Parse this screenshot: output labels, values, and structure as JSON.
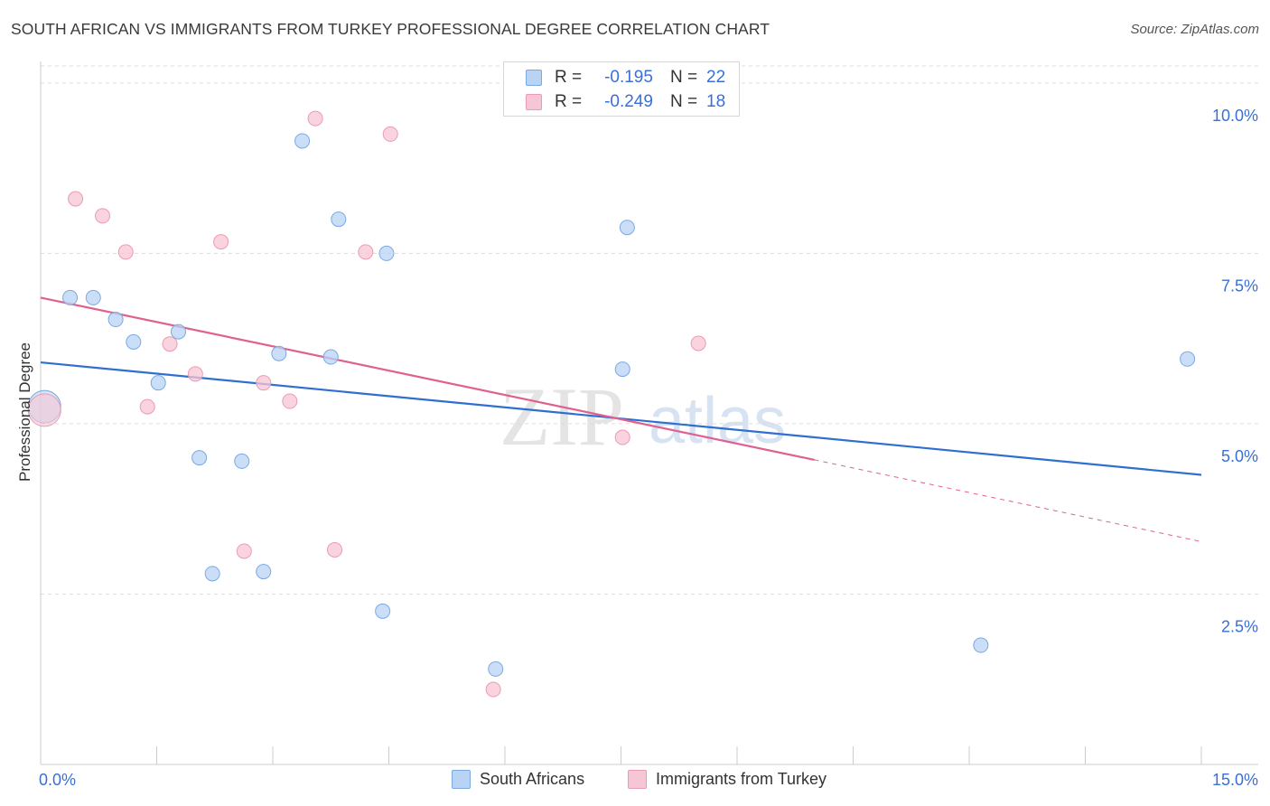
{
  "page": {
    "title": "SOUTH AFRICAN VS IMMIGRANTS FROM TURKEY PROFESSIONAL DEGREE CORRELATION CHART",
    "source": "Source: ZipAtlas.com"
  },
  "colors": {
    "blue_fill": "#b9d3f4",
    "blue_stroke": "#7aa9e2",
    "blue_line": "#2f6fd0",
    "pink_fill": "#f7c6d4",
    "pink_stroke": "#ec9ab3",
    "pink_line": "#e0608f",
    "grid": "#dcdcdc",
    "tick_label": "#3a6fd8",
    "watermark": "#e6e6e6"
  },
  "legend": {
    "rows": [
      {
        "r_label": "R =",
        "r_value": "-0.195",
        "n_label": "N =",
        "n_value": "22"
      },
      {
        "r_label": "R =",
        "r_value": "-0.249",
        "n_label": "N =",
        "n_value": "18"
      }
    ]
  },
  "watermark": {
    "zip": "ZIP",
    "atlas": "atlas"
  },
  "chart_data": {
    "type": "scatter",
    "title": "SOUTH AFRICAN VS IMMIGRANTS FROM TURKEY PROFESSIONAL DEGREE CORRELATION CHART",
    "xlabel": "",
    "ylabel": "Professional Degree",
    "xlim": [
      0,
      15
    ],
    "ylim": [
      0,
      10.25
    ],
    "x_tick_labels": [
      "0.0%",
      "15.0%"
    ],
    "y_ticks": [
      2.5,
      5.0,
      7.5,
      10.0
    ],
    "y_tick_labels": [
      "2.5%",
      "5.0%",
      "7.5%",
      "10.0%"
    ],
    "grid": true,
    "legend_position": "top-center",
    "series": [
      {
        "name": "South Africans",
        "color": "#7aa9e2",
        "points": [
          [
            0.05,
            5.25
          ],
          [
            0.38,
            6.85
          ],
          [
            0.68,
            6.85
          ],
          [
            0.97,
            6.53
          ],
          [
            1.2,
            6.2
          ],
          [
            1.52,
            5.6
          ],
          [
            1.78,
            6.35
          ],
          [
            2.05,
            4.5
          ],
          [
            2.22,
            2.8
          ],
          [
            2.6,
            4.45
          ],
          [
            2.88,
            2.83
          ],
          [
            3.08,
            6.03
          ],
          [
            3.38,
            9.15
          ],
          [
            3.75,
            5.98
          ],
          [
            3.85,
            8.0
          ],
          [
            4.47,
            7.5
          ],
          [
            4.42,
            2.25
          ],
          [
            5.88,
            1.4
          ],
          [
            7.52,
            5.8
          ],
          [
            7.58,
            7.88
          ],
          [
            12.15,
            1.75
          ],
          [
            14.82,
            5.95
          ]
        ],
        "trend": {
          "x": [
            0,
            15
          ],
          "y": [
            5.9,
            4.25
          ],
          "style": "solid"
        }
      },
      {
        "name": "Immigrants from Turkey",
        "color": "#ec9ab3",
        "points": [
          [
            0.05,
            5.2
          ],
          [
            0.45,
            8.3
          ],
          [
            0.8,
            8.05
          ],
          [
            1.1,
            7.52
          ],
          [
            1.38,
            5.25
          ],
          [
            1.67,
            6.17
          ],
          [
            2.0,
            5.73
          ],
          [
            2.33,
            7.67
          ],
          [
            2.63,
            3.13
          ],
          [
            2.88,
            5.6
          ],
          [
            3.22,
            5.33
          ],
          [
            3.55,
            9.48
          ],
          [
            3.8,
            3.15
          ],
          [
            4.2,
            7.52
          ],
          [
            4.52,
            9.25
          ],
          [
            5.85,
            1.1
          ],
          [
            7.52,
            4.8
          ],
          [
            8.5,
            6.18
          ]
        ],
        "trend": {
          "x": [
            0,
            10
          ],
          "y": [
            6.85,
            4.47
          ],
          "style": "solid"
        },
        "trend_extension": {
          "x": [
            10,
            15
          ],
          "y": [
            4.47,
            3.27
          ],
          "style": "dashed"
        }
      }
    ]
  }
}
